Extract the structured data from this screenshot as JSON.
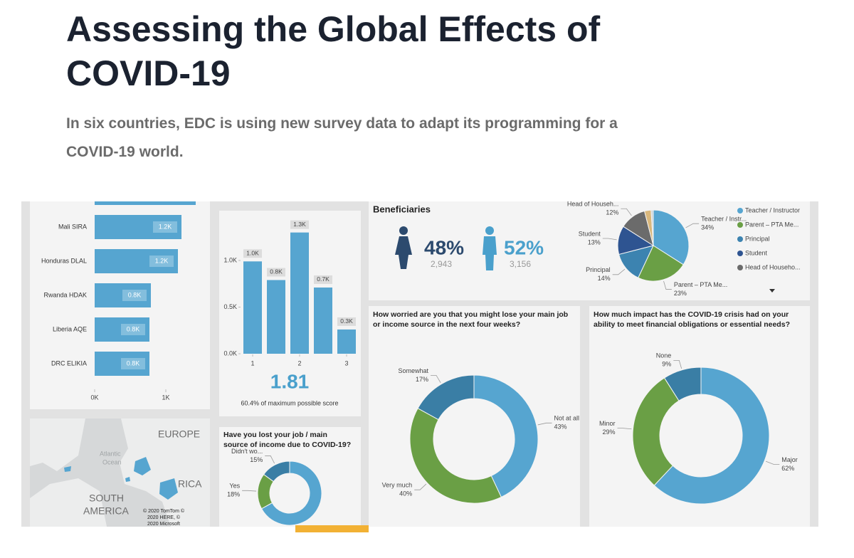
{
  "header": {
    "title": [
      "Assessing the Global Effects of",
      "COVID-19"
    ],
    "subtitle": [
      "In six countries, EDC is using new survey data to adapt its programming for a",
      "COVID-19 world."
    ]
  },
  "chart_data": [
    {
      "type": "barh",
      "categories": [
        null,
        "Mali SIRA",
        "Honduras DLAL",
        "Rwanda HDAK",
        "Liberia AQE",
        "DRC ELIKIA"
      ],
      "values": [
        1420,
        1220,
        1170,
        790,
        770,
        770
      ],
      "value_labels": [
        null,
        "1.2K",
        "1.2K",
        "0.8K",
        "0.8K",
        "0.8K"
      ],
      "color": "#56a5d0",
      "xlim": [
        0,
        1600
      ],
      "xticks": [
        {
          "value": 0,
          "label": "0K"
        },
        {
          "value": 1000,
          "label": "1K"
        }
      ]
    },
    {
      "type": "bar",
      "x": [
        1,
        1.5,
        2,
        2.5,
        3
      ],
      "values": [
        990,
        790,
        1300,
        710,
        260
      ],
      "value_labels": [
        "1.0K",
        "0.8K",
        "1.3K",
        "0.7K",
        "0.3K"
      ],
      "color": "#56a5d0",
      "xlim": [
        0.75,
        3.25
      ],
      "xticks": [
        1,
        2,
        3
      ],
      "ylim": [
        0,
        1450
      ],
      "yticks": [
        {
          "value": 0,
          "label": "0.0K"
        },
        {
          "value": 500,
          "label": "0.5K"
        },
        {
          "value": 1000,
          "label": "1.0K"
        }
      ]
    },
    {
      "type": "pie",
      "categories": [
        "Teacher / Instructor",
        "Parent – PTA Me...",
        "Principal",
        "Student",
        "Head of Househo...",
        null,
        null
      ],
      "slice_labels": [
        "Teacher / Instr...",
        "Parent – PTA Me...",
        "Principal",
        "Student",
        "Head of Househ...",
        null,
        null
      ],
      "values": [
        34,
        23,
        14,
        13,
        12,
        3,
        1
      ],
      "value_labels": [
        "34%",
        "23%",
        "14%",
        "13%",
        "12%",
        null,
        null
      ],
      "colors": [
        "#56a5d0",
        "#6a9f45",
        "#3c83b0",
        "#2e5491",
        "#6b6b6b",
        "#d9b77c",
        "#c9d3dc"
      ]
    },
    {
      "type": "donut",
      "title": [
        "How worried are you that you might lose your main job",
        "or income source in the next four weeks?"
      ],
      "categories": [
        "Not at all",
        "Very much",
        "Somewhat"
      ],
      "values": [
        43,
        40,
        17
      ],
      "value_labels": [
        "43%",
        "40%",
        "17%"
      ],
      "colors": [
        "#56a5d0",
        "#6a9f45",
        "#3a7ea5"
      ]
    },
    {
      "type": "donut",
      "title": [
        "How much impact has the COVID-19 crisis had on your",
        "ability to meet financial obligations or essential needs?"
      ],
      "categories": [
        "Major",
        "Minor",
        "None"
      ],
      "values": [
        62,
        29,
        9
      ],
      "value_labels": [
        "62%",
        "29%",
        "9%"
      ],
      "colors": [
        "#56a5d0",
        "#6a9f45",
        "#3a7ea5"
      ]
    },
    {
      "type": "donut",
      "title": [
        "Have you lost your job / main",
        "source of income due to COVID-19?"
      ],
      "categories": [
        null,
        "Yes",
        "Didn't wo..."
      ],
      "values": [
        67,
        18,
        15
      ],
      "value_labels": [
        null,
        "18%",
        "15%"
      ],
      "colors": [
        "#56a5d0",
        "#6a9f45",
        "#3a7ea5"
      ]
    }
  ],
  "score": {
    "value": "1.81",
    "caption": "60.4% of maximum possible score"
  },
  "beneficiaries": {
    "title": "Beneficiaries",
    "groups": [
      {
        "percent": "48%",
        "count": "2,943"
      },
      {
        "percent": "52%",
        "count": "3,156"
      }
    ]
  },
  "map": {
    "labels": [
      "EUROPE",
      "Atlantic",
      "Ocean",
      "RICA",
      "SOUTH",
      "AMERICA"
    ],
    "attribution": [
      "© 2020 TomTom ©",
      "2020 HERE, ©",
      "2020 Microsoft"
    ]
  }
}
